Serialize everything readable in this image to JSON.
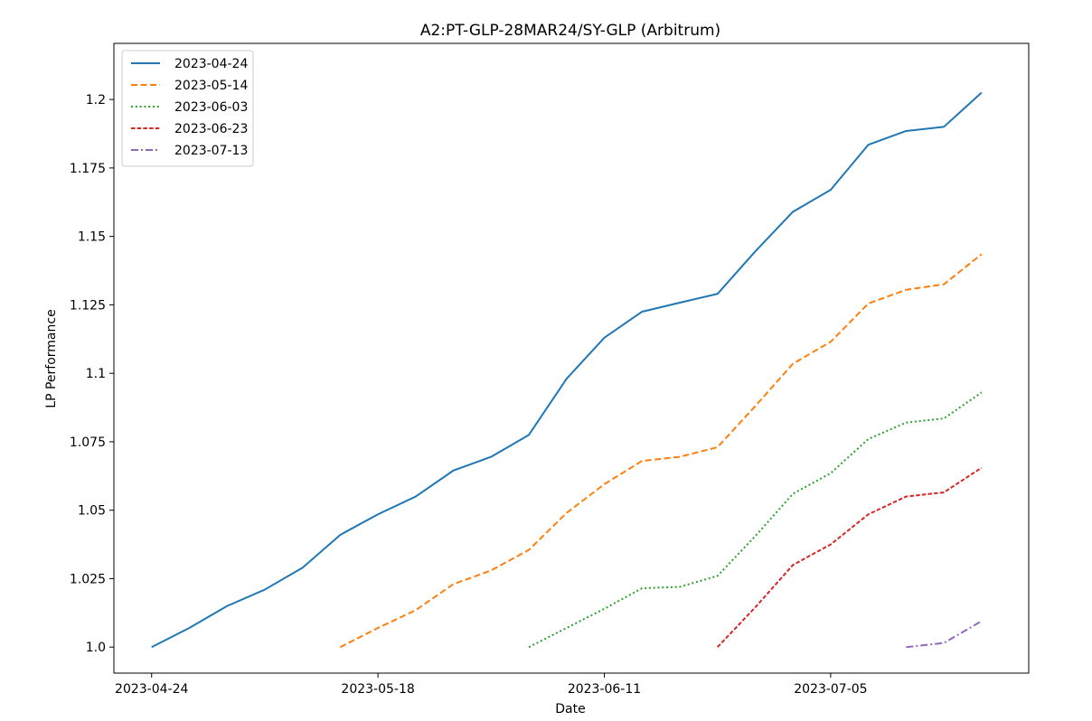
{
  "chart_data": {
    "type": "line",
    "title": "A2:PT-GLP-28MAR24/SY-GLP (Arbitrum)",
    "xlabel": "Date",
    "ylabel": "LP Performance",
    "x_ticks": [
      "2023-04-24",
      "2023-05-18",
      "2023-06-11",
      "2023-07-05"
    ],
    "y_ticks": [
      "1.0",
      "1.025",
      "1.05",
      "1.075",
      "1.1",
      "1.125",
      "1.15",
      "1.175",
      "1.2"
    ],
    "xlim": [
      "2023-04-20",
      "2023-07-26"
    ],
    "ylim": [
      0.9905,
      1.2205
    ],
    "grid": false,
    "legend_position": "top-left",
    "series": [
      {
        "name": "2023-04-24",
        "color": "#1f77b4",
        "dash": "solid",
        "points": [
          [
            "2023-04-24",
            1.0
          ],
          [
            "2023-04-28",
            1.007
          ],
          [
            "2023-05-02",
            1.015
          ],
          [
            "2023-05-06",
            1.021
          ],
          [
            "2023-05-10",
            1.029
          ],
          [
            "2023-05-14",
            1.041
          ],
          [
            "2023-05-18",
            1.0485
          ],
          [
            "2023-05-22",
            1.055
          ],
          [
            "2023-05-26",
            1.0645
          ],
          [
            "2023-05-30",
            1.0695
          ],
          [
            "2023-06-03",
            1.0775
          ],
          [
            "2023-06-07",
            1.098
          ],
          [
            "2023-06-11",
            1.113
          ],
          [
            "2023-06-15",
            1.1225
          ],
          [
            "2023-06-19",
            1.1258
          ],
          [
            "2023-06-23",
            1.129
          ],
          [
            "2023-06-27",
            1.1445
          ],
          [
            "2023-07-01",
            1.159
          ],
          [
            "2023-07-05",
            1.167
          ],
          [
            "2023-07-09",
            1.1835
          ],
          [
            "2023-07-13",
            1.1885
          ],
          [
            "2023-07-17",
            1.19
          ],
          [
            "2023-07-21",
            1.2025
          ]
        ]
      },
      {
        "name": "2023-05-14",
        "color": "#ff7f0e",
        "dash": "dashed",
        "points": [
          [
            "2023-05-14",
            1.0
          ],
          [
            "2023-05-18",
            1.007
          ],
          [
            "2023-05-22",
            1.0135
          ],
          [
            "2023-05-26",
            1.023
          ],
          [
            "2023-05-30",
            1.028
          ],
          [
            "2023-06-03",
            1.0355
          ],
          [
            "2023-06-07",
            1.049
          ],
          [
            "2023-06-11",
            1.0595
          ],
          [
            "2023-06-15",
            1.068
          ],
          [
            "2023-06-19",
            1.0695
          ],
          [
            "2023-06-23",
            1.073
          ],
          [
            "2023-06-27",
            1.088
          ],
          [
            "2023-07-01",
            1.1035
          ],
          [
            "2023-07-05",
            1.1115
          ],
          [
            "2023-07-09",
            1.1255
          ],
          [
            "2023-07-13",
            1.1305
          ],
          [
            "2023-07-17",
            1.1325
          ],
          [
            "2023-07-21",
            1.1435
          ]
        ]
      },
      {
        "name": "2023-06-03",
        "color": "#2ca02c",
        "dash": "dotted",
        "points": [
          [
            "2023-06-03",
            1.0
          ],
          [
            "2023-06-07",
            1.007
          ],
          [
            "2023-06-11",
            1.014
          ],
          [
            "2023-06-15",
            1.0215
          ],
          [
            "2023-06-19",
            1.022
          ],
          [
            "2023-06-23",
            1.026
          ],
          [
            "2023-06-27",
            1.0405
          ],
          [
            "2023-07-01",
            1.056
          ],
          [
            "2023-07-05",
            1.0635
          ],
          [
            "2023-07-09",
            1.076
          ],
          [
            "2023-07-13",
            1.082
          ],
          [
            "2023-07-17",
            1.0835
          ],
          [
            "2023-07-21",
            1.093
          ]
        ]
      },
      {
        "name": "2023-06-23",
        "color": "#d62728",
        "dash": "densedash",
        "points": [
          [
            "2023-06-23",
            1.0
          ],
          [
            "2023-06-27",
            1.0145
          ],
          [
            "2023-07-01",
            1.03
          ],
          [
            "2023-07-05",
            1.0375
          ],
          [
            "2023-07-09",
            1.0485
          ],
          [
            "2023-07-13",
            1.055
          ],
          [
            "2023-07-17",
            1.0565
          ],
          [
            "2023-07-21",
            1.0655
          ]
        ]
      },
      {
        "name": "2023-07-13",
        "color": "#9467bd",
        "dash": "dashdot",
        "points": [
          [
            "2023-07-13",
            1.0
          ],
          [
            "2023-07-17",
            1.0015
          ],
          [
            "2023-07-21",
            1.0095
          ]
        ]
      }
    ]
  }
}
